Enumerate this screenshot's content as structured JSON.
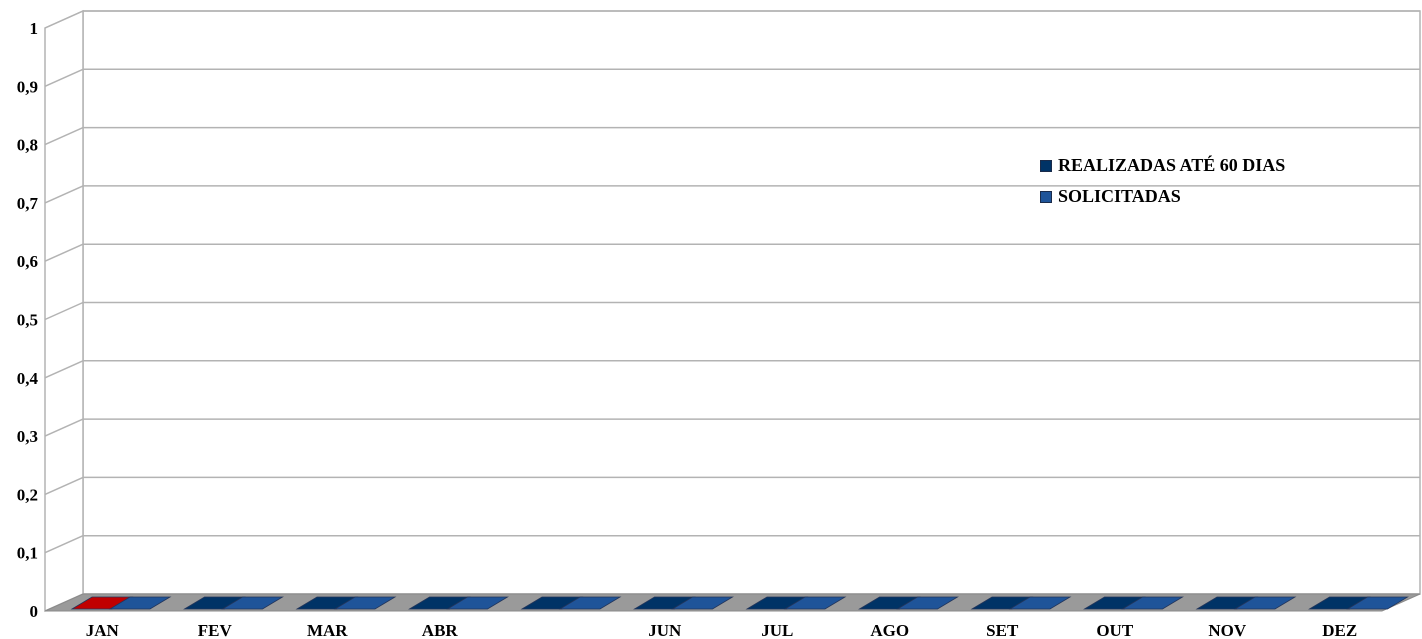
{
  "chart_data": {
    "type": "bar",
    "title": "",
    "xlabel": "",
    "ylabel": "",
    "categories": [
      "JAN",
      "FEV",
      "MAR",
      "ABR",
      "",
      "JUN",
      "JUL",
      "AGO",
      "SET",
      "OUT",
      "NOV",
      "DEZ"
    ],
    "yticks": [
      "0",
      "0,1",
      "0,2",
      "0,3",
      "0,4",
      "0,5",
      "0,6",
      "0,7",
      "0,8",
      "0,9",
      "1"
    ],
    "ylim": [
      0,
      1
    ],
    "grid": true,
    "legend_position": "right",
    "series": [
      {
        "name": "REALIZADAS ATÉ 60 DIAS",
        "values": [
          0,
          0,
          0,
          0,
          0,
          0,
          0,
          0,
          0,
          0,
          0,
          0
        ],
        "color": "#003366"
      },
      {
        "name": "SOLICITADAS",
        "values": [
          0,
          0,
          0,
          0,
          0,
          0,
          0,
          0,
          0,
          0,
          0,
          0
        ],
        "color": "#1f5499"
      }
    ],
    "highlight_color": "#c00000"
  }
}
